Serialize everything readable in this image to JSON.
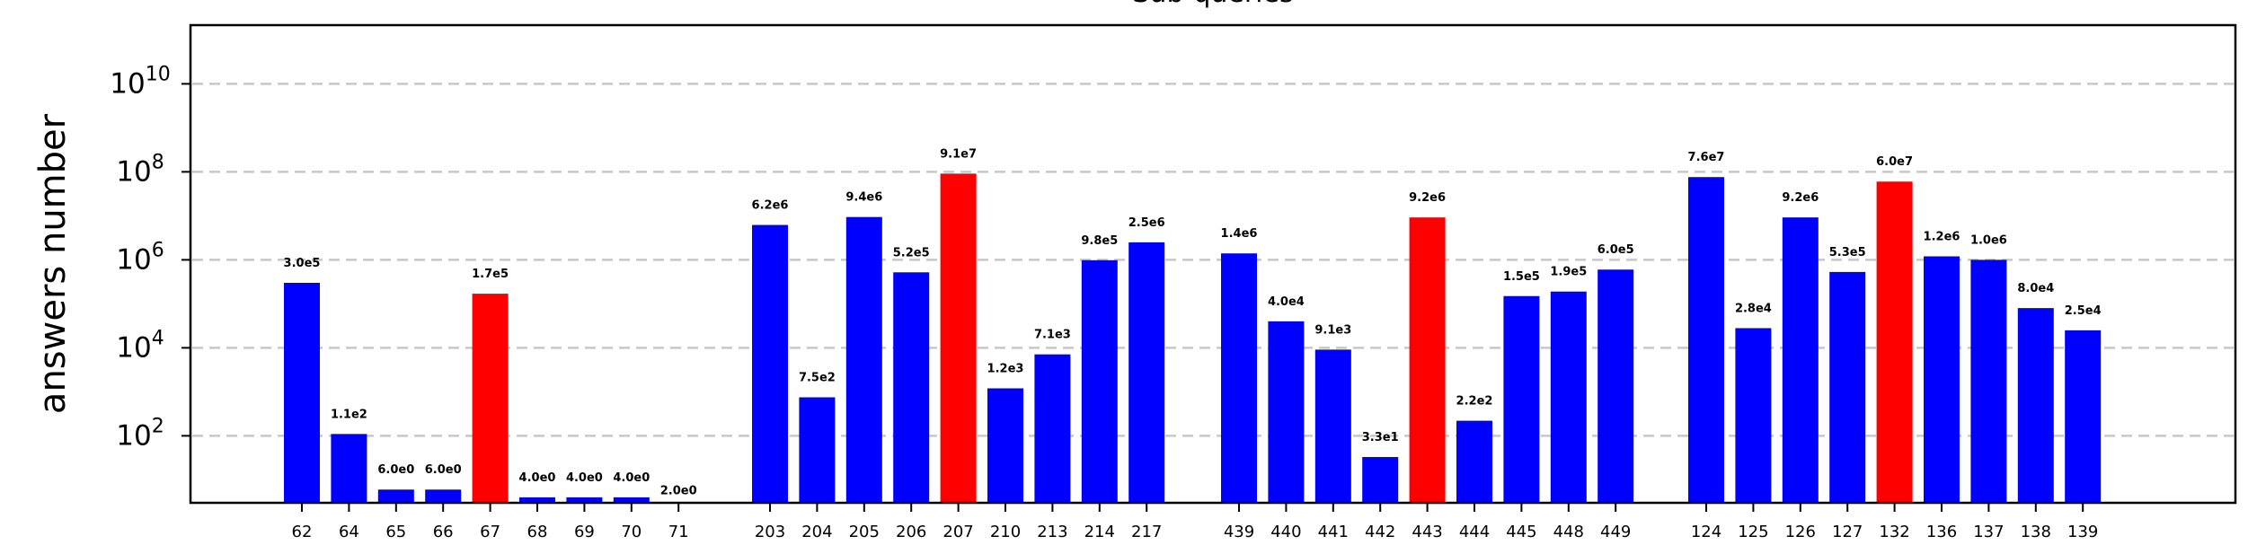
{
  "chart_data": {
    "type": "bar",
    "title": "Sub-queries",
    "xlabel": "",
    "ylabel": "answers number",
    "yscale": "log",
    "ylim": [
      3,
      100000000000
    ],
    "yticks": [
      {
        "value": 100,
        "base": "10",
        "exp": "2"
      },
      {
        "value": 10000,
        "base": "10",
        "exp": "4"
      },
      {
        "value": 1000000,
        "base": "10",
        "exp": "6"
      },
      {
        "value": 100000000,
        "base": "10",
        "exp": "8"
      },
      {
        "value": 10000000000,
        "base": "10",
        "exp": "10"
      }
    ],
    "grid": "horizontal dashed",
    "colors": {
      "normal": "#0000ff",
      "highlight": "#ff0000",
      "grid": "#c8c8c8"
    },
    "groups": [
      {
        "bars": [
          {
            "label": "62",
            "value": 300000,
            "text": "3.0e5",
            "highlight": false
          },
          {
            "label": "64",
            "value": 110,
            "text": "1.1e2",
            "highlight": false
          },
          {
            "label": "65",
            "value": 6,
            "text": "6.0e0",
            "highlight": false
          },
          {
            "label": "66",
            "value": 6,
            "text": "6.0e0",
            "highlight": false
          },
          {
            "label": "67",
            "value": 170000,
            "text": "1.7e5",
            "highlight": true
          },
          {
            "label": "68",
            "value": 4,
            "text": "4.0e0",
            "highlight": false
          },
          {
            "label": "69",
            "value": 4,
            "text": "4.0e0",
            "highlight": false
          },
          {
            "label": "70",
            "value": 4,
            "text": "4.0e0",
            "highlight": false
          },
          {
            "label": "71",
            "value": 2,
            "text": "2.0e0",
            "highlight": false
          }
        ]
      },
      {
        "bars": [
          {
            "label": "203",
            "value": 6200000,
            "text": "6.2e6",
            "highlight": false
          },
          {
            "label": "204",
            "value": 750,
            "text": "7.5e2",
            "highlight": false
          },
          {
            "label": "205",
            "value": 9400000,
            "text": "9.4e6",
            "highlight": false
          },
          {
            "label": "206",
            "value": 520000,
            "text": "5.2e5",
            "highlight": false
          },
          {
            "label": "207",
            "value": 91000000,
            "text": "9.1e7",
            "highlight": true
          },
          {
            "label": "210",
            "value": 1200,
            "text": "1.2e3",
            "highlight": false
          },
          {
            "label": "213",
            "value": 7100,
            "text": "7.1e3",
            "highlight": false
          },
          {
            "label": "214",
            "value": 980000,
            "text": "9.8e5",
            "highlight": false
          },
          {
            "label": "217",
            "value": 2500000,
            "text": "2.5e6",
            "highlight": false
          }
        ]
      },
      {
        "bars": [
          {
            "label": "439",
            "value": 1400000,
            "text": "1.4e6",
            "highlight": false
          },
          {
            "label": "440",
            "value": 40000,
            "text": "4.0e4",
            "highlight": false
          },
          {
            "label": "441",
            "value": 9100,
            "text": "9.1e3",
            "highlight": false
          },
          {
            "label": "442",
            "value": 33,
            "text": "3.3e1",
            "highlight": false
          },
          {
            "label": "443",
            "value": 9200000,
            "text": "9.2e6",
            "highlight": true
          },
          {
            "label": "444",
            "value": 220,
            "text": "2.2e2",
            "highlight": false
          },
          {
            "label": "445",
            "value": 150000,
            "text": "1.5e5",
            "highlight": false
          },
          {
            "label": "448",
            "value": 190000,
            "text": "1.9e5",
            "highlight": false
          },
          {
            "label": "449",
            "value": 600000,
            "text": "6.0e5",
            "highlight": false
          }
        ]
      },
      {
        "bars": [
          {
            "label": "124",
            "value": 76000000,
            "text": "7.6e7",
            "highlight": false
          },
          {
            "label": "125",
            "value": 28000,
            "text": "2.8e4",
            "highlight": false
          },
          {
            "label": "126",
            "value": 9200000,
            "text": "9.2e6",
            "highlight": false
          },
          {
            "label": "127",
            "value": 530000,
            "text": "5.3e5",
            "highlight": false
          },
          {
            "label": "132",
            "value": 60000000,
            "text": "6.0e7",
            "highlight": true
          },
          {
            "label": "136",
            "value": 1200000,
            "text": "1.2e6",
            "highlight": false
          },
          {
            "label": "137",
            "value": 1000000,
            "text": "1.0e6",
            "highlight": false
          },
          {
            "label": "138",
            "value": 80000,
            "text": "8.0e4",
            "highlight": false
          },
          {
            "label": "139",
            "value": 25000,
            "text": "2.5e4",
            "highlight": false
          }
        ]
      }
    ]
  }
}
